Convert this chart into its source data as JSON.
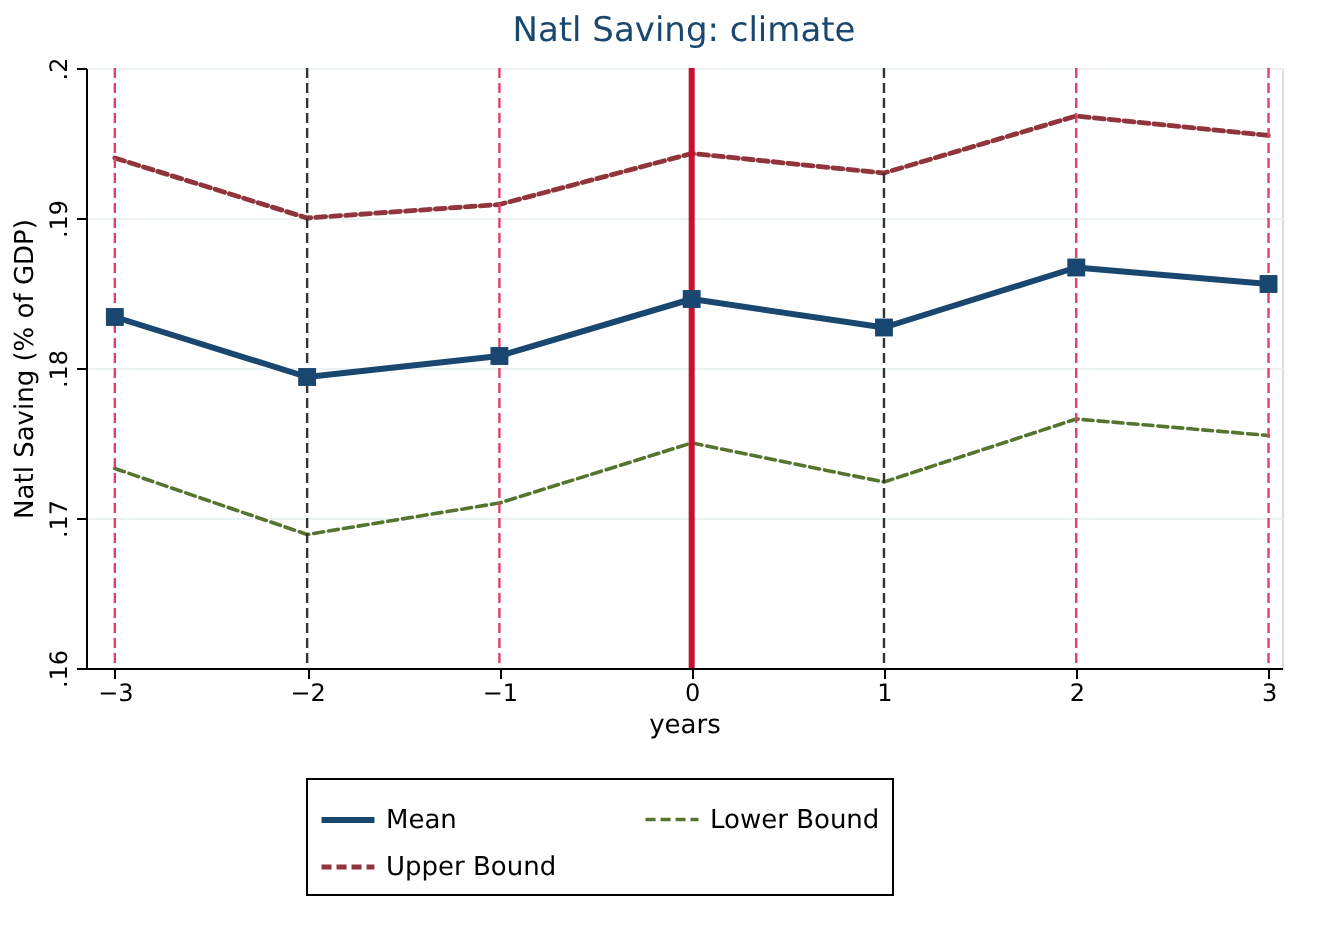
{
  "chart_data": {
    "type": "line",
    "title": "Natl Saving: climate",
    "xlabel": "years",
    "ylabel": "Natl Saving (% of GDP)",
    "x": [
      -3,
      -2,
      -1,
      0,
      1,
      2,
      3
    ],
    "series": [
      {
        "name": "Mean",
        "color": "#1a476f",
        "marker": "square",
        "line_style": "solid",
        "values": [
          0.1834,
          0.1794,
          0.1808,
          0.1846,
          0.1827,
          0.1867,
          0.1856
        ]
      },
      {
        "name": "Upper Bound",
        "color": "#90353b",
        "marker": "none",
        "line_style": "dashed",
        "values": [
          0.194,
          0.19,
          0.1909,
          0.1943,
          0.193,
          0.1968,
          0.1955
        ]
      },
      {
        "name": "Lower Bound",
        "color": "#55752f",
        "marker": "none",
        "line_style": "dashed",
        "values": [
          0.1733,
          0.1689,
          0.171,
          0.175,
          0.1724,
          0.1766,
          0.1755
        ]
      }
    ],
    "xlim": [
      -3.15,
      3.07
    ],
    "xticks": [
      -3,
      -2,
      -1,
      0,
      1,
      2,
      3
    ],
    "ylim": [
      0.16,
      0.2
    ],
    "yticks": [
      {
        "value": 0.16,
        "label": ".16"
      },
      {
        "value": 0.17,
        "label": ".17"
      },
      {
        "value": 0.18,
        "label": ".18"
      },
      {
        "value": 0.19,
        "label": ".19"
      },
      {
        "value": 0.2,
        "label": ".2"
      }
    ],
    "ref_lines": [
      {
        "axis": "x",
        "value": -3,
        "color": "#e0406a",
        "line_style": "dashed"
      },
      {
        "axis": "x",
        "value": -2,
        "color": "#333333",
        "line_style": "dashed"
      },
      {
        "axis": "x",
        "value": -1,
        "color": "#e0406a",
        "line_style": "dashed"
      },
      {
        "axis": "x",
        "value": 0,
        "color": "#c8102e",
        "line_style": "solid"
      },
      {
        "axis": "x",
        "value": 1,
        "color": "#333333",
        "line_style": "dashed"
      },
      {
        "axis": "x",
        "value": 2,
        "color": "#e0406a",
        "line_style": "dashed"
      },
      {
        "axis": "x",
        "value": 3,
        "color": "#e0406a",
        "line_style": "dashed"
      }
    ],
    "grid": "y",
    "legend": "bottom"
  }
}
